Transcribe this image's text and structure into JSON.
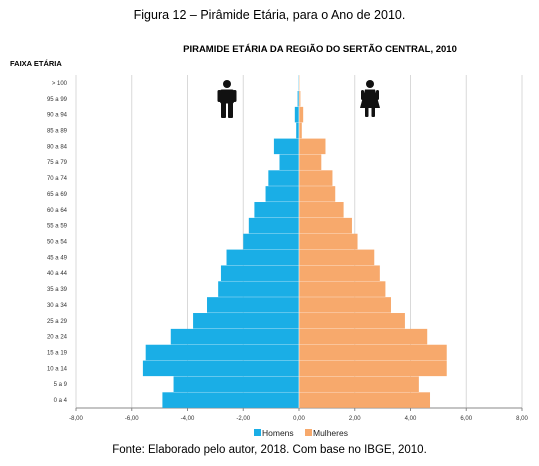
{
  "figure_caption": "Figura 12 – Pirâmide Etária, para o Ano de 2010.",
  "source": "Fonte: Elaborado pelo autor, 2018. Com base no IBGE, 2010.",
  "icons": {
    "male": "male-person-icon",
    "female": "female-person-icon"
  },
  "chart_data": {
    "type": "bar",
    "orientation": "horizontal-diverging",
    "title": "PIRAMIDE ETÁRIA DA REGIÃO DO SERTÃO CENTRAL, 2010",
    "ylabel": "FAIXA ETÁRIA",
    "xlabel": "",
    "categories": [
      "0 a 4",
      "5 a 9",
      "10 a 14",
      "15 a 19",
      "20 a 24",
      "25 a 29",
      "30 a 34",
      "35 a 39",
      "40 a 44",
      "45 a 49",
      "50 a 54",
      "55 a 59",
      "60 a 64",
      "65 a 69",
      "70 a 74",
      "75 a 79",
      "80 a 84",
      "85 a 89",
      "90 a 94",
      "95 a 99",
      "> 100"
    ],
    "series": [
      {
        "name": "Homens",
        "color": "#1AAEE6",
        "values": [
          -4.9,
          -4.5,
          -5.6,
          -5.5,
          -4.6,
          -3.8,
          -3.3,
          -2.9,
          -2.8,
          -2.6,
          -2.0,
          -1.8,
          -1.6,
          -1.2,
          -1.1,
          -0.7,
          -0.9,
          -0.1,
          -0.15,
          -0.05,
          -0.02
        ]
      },
      {
        "name": "Mulheres",
        "color": "#F7A96C",
        "values": [
          4.7,
          4.3,
          5.3,
          5.3,
          4.6,
          3.8,
          3.3,
          3.1,
          2.9,
          2.7,
          2.1,
          1.9,
          1.6,
          1.3,
          1.2,
          0.8,
          0.95,
          0.1,
          0.15,
          0.05,
          0.02
        ]
      }
    ],
    "x_ticks": [
      "-8,00",
      "-6,00",
      "-4,00",
      "-2,00",
      "0,00",
      "2,00",
      "4,00",
      "6,00",
      "8,00"
    ],
    "xlim": [
      -8,
      8
    ],
    "grid": "vertical",
    "legend_position": "bottom"
  }
}
